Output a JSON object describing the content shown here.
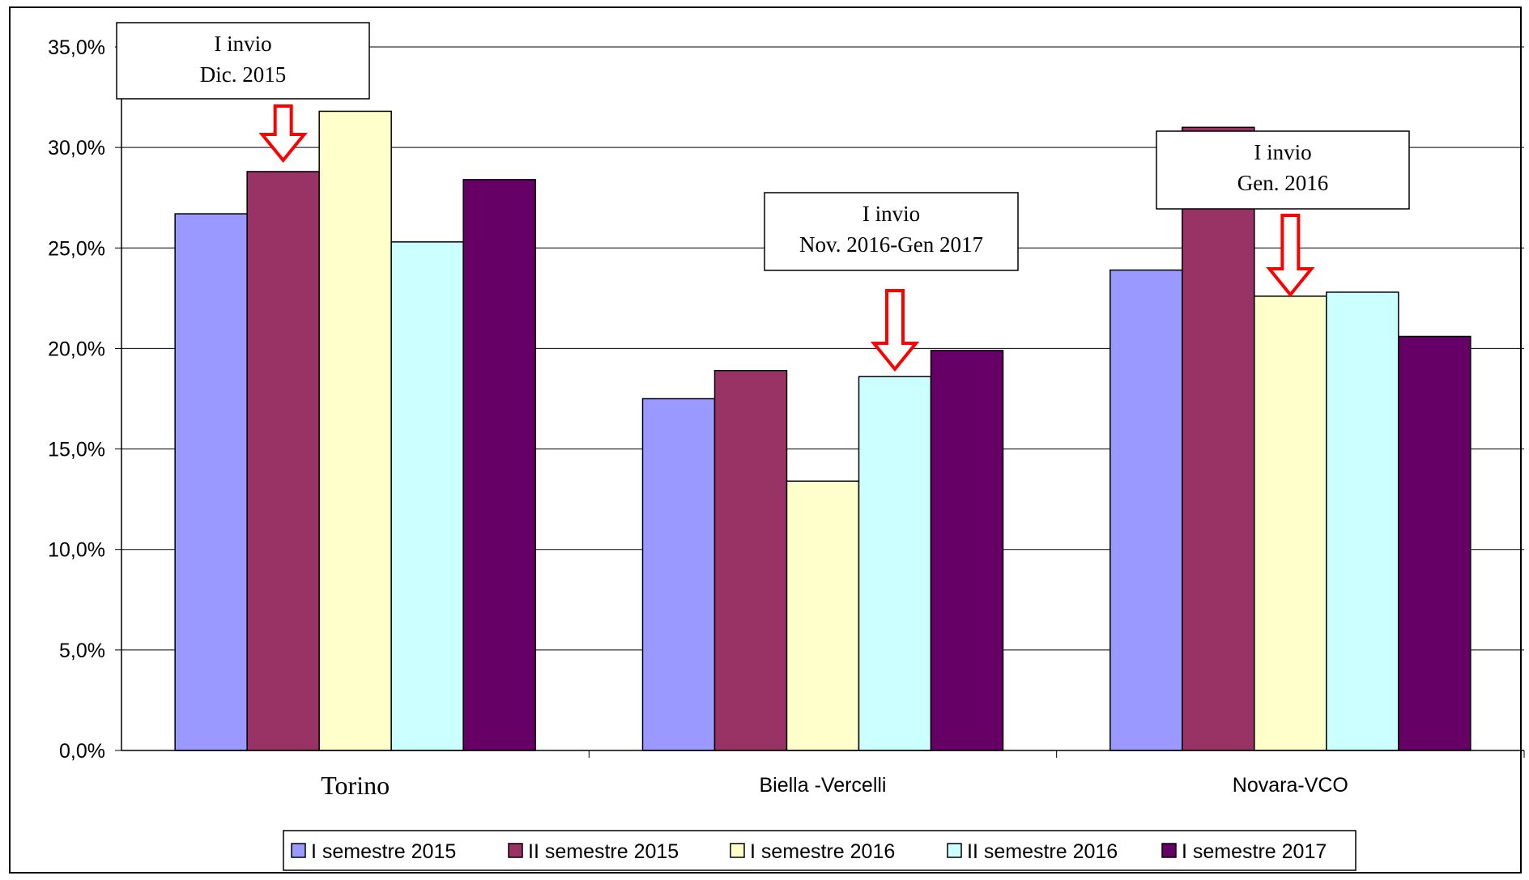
{
  "chart_data": {
    "type": "bar",
    "categories": [
      "Torino",
      "Biella -Vercelli",
      "Novara-VCO"
    ],
    "series": [
      {
        "name": "I semestre 2015",
        "values": [
          26.7,
          17.5,
          23.9
        ],
        "color": "#9999FF"
      },
      {
        "name": "II semestre 2015",
        "values": [
          28.8,
          18.9,
          31.0
        ],
        "color": "#993366"
      },
      {
        "name": "I semestre 2016",
        "values": [
          31.8,
          13.4,
          22.6
        ],
        "color": "#FFFFCC"
      },
      {
        "name": "II semestre 2016",
        "values": [
          25.3,
          18.6,
          22.8
        ],
        "color": "#CCFFFF"
      },
      {
        "name": "I semestre 2017",
        "values": [
          28.4,
          19.9,
          20.6
        ],
        "color": "#660066"
      }
    ],
    "ylim": [
      0,
      35
    ],
    "yticks": [
      "0,0%",
      "5,0%",
      "10,0%",
      "15,0%",
      "20,0%",
      "25,0%",
      "30,0%",
      "35,0%"
    ],
    "grid": true,
    "legend_position": "bottom",
    "annotations": [
      {
        "category": "Torino",
        "series": "II semestre 2015",
        "lines": [
          "I invio",
          "Dic. 2015"
        ]
      },
      {
        "category": "Biella -Vercelli",
        "series": "II semestre 2016",
        "lines": [
          "I invio",
          "Nov. 2016-Gen 2017"
        ]
      },
      {
        "category": "Novara-VCO",
        "series": "I semestre 2016",
        "lines": [
          "I invio",
          "Gen. 2016"
        ]
      }
    ],
    "arrow_color": "#FF0000"
  }
}
